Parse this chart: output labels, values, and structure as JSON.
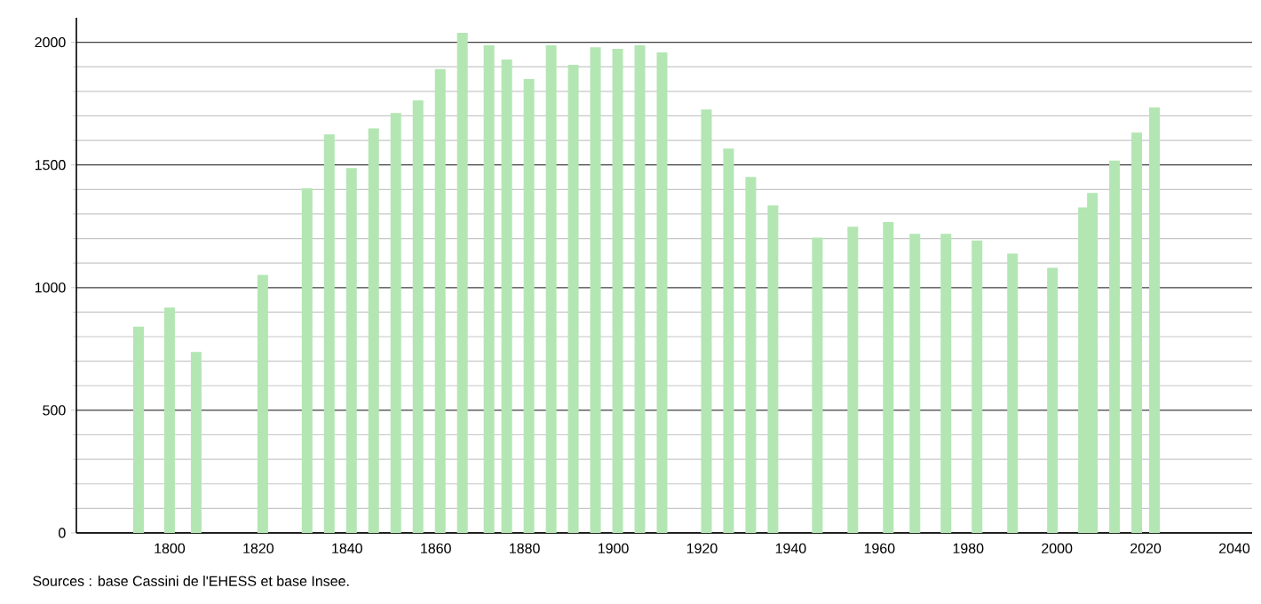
{
  "chart_data": {
    "type": "bar",
    "x": [
      1793,
      1800,
      1806,
      1821,
      1831,
      1836,
      1841,
      1846,
      1851,
      1856,
      1861,
      1866,
      1872,
      1876,
      1881,
      1886,
      1891,
      1896,
      1901,
      1906,
      1911,
      1921,
      1926,
      1931,
      1936,
      1946,
      1954,
      1962,
      1968,
      1975,
      1982,
      1990,
      1999,
      2006,
      2008,
      2013,
      2018,
      2022
    ],
    "values": [
      841,
      919,
      738,
      1052,
      1405,
      1625,
      1487,
      1649,
      1712,
      1763,
      1891,
      2038,
      1988,
      1930,
      1850,
      1988,
      1908,
      1980,
      1973,
      1988,
      1959,
      1726,
      1567,
      1451,
      1335,
      1204,
      1248,
      1267,
      1219,
      1219,
      1192,
      1139,
      1081,
      1327,
      1386,
      1518,
      1632,
      1734
    ],
    "color": "#b3e6b3",
    "xlim": [
      1779,
      2044
    ],
    "ylim": [
      0,
      2100
    ],
    "xticks": [
      1800,
      1820,
      1840,
      1860,
      1880,
      1900,
      1920,
      1940,
      1960,
      1980,
      2000,
      2020,
      2040
    ],
    "yticks": [
      0,
      500,
      1000,
      1500,
      2000
    ],
    "grid": "y",
    "annotations": [
      "Sources : base Cassini de l'EHESS et base Insee."
    ]
  }
}
